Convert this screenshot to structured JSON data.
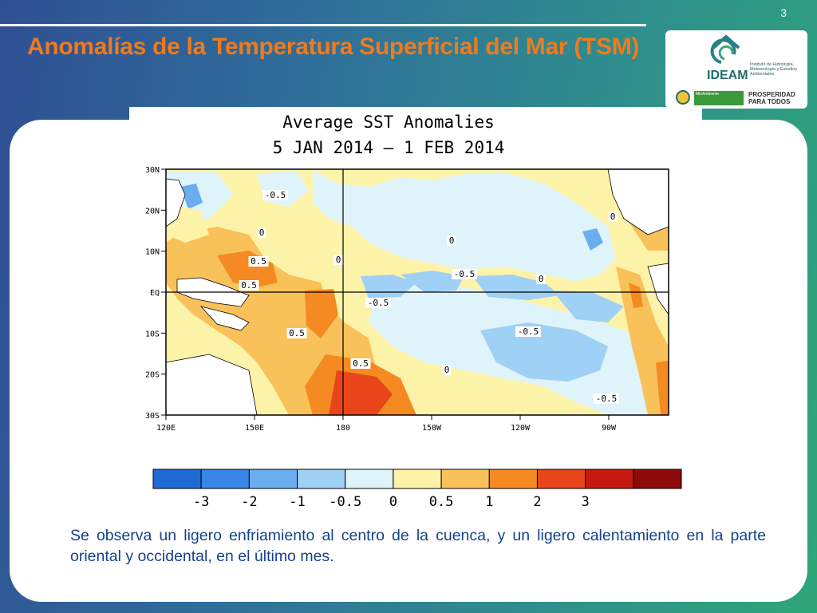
{
  "slide": {
    "number": "3",
    "title": "Anomalías de la Temperatura Superficial del Mar (TSM)",
    "caption": "Se observa un ligero enfriamiento al centro de la cuenca, y un ligero calentamiento en la parte oriental y occidental, en el último mes."
  },
  "logo": {
    "name": "IDEAM",
    "institution": "Instituto de Hidrología, Meteorología y Estudios Ambientales",
    "ministry": "MinAmbiente",
    "slogan": "PROSPERIDAD PARA TODOS"
  },
  "map": {
    "title_line1": "Average SST Anomalies",
    "title_line2": "5 JAN 2014 – 1 FEB 2014",
    "lat_labels": [
      "30N",
      "20N",
      "10N",
      "EQ",
      "10S",
      "20S",
      "30S"
    ],
    "lon_labels": [
      "120E",
      "150E",
      "180",
      "150W",
      "120W",
      "90W"
    ],
    "contour_labels": [
      "-0.5",
      "0.5",
      "0.5",
      "0",
      "0",
      "-0.5",
      "-0.5",
      "0",
      "0.5",
      "0.5",
      "0",
      "-0.5",
      "-0.5",
      "0",
      "0"
    ],
    "colorbar": {
      "colors": [
        "#1f6bd6",
        "#3a86e6",
        "#6aaef0",
        "#9fd0f5",
        "#dff3fb",
        "#fdf3a8",
        "#f9c15a",
        "#f58a22",
        "#e8461a",
        "#c61a10",
        "#8c0a0a"
      ],
      "labels": [
        "-3",
        "-2",
        "-1",
        "-0.5",
        "0",
        "0.5",
        "1",
        "2",
        "3"
      ]
    }
  }
}
